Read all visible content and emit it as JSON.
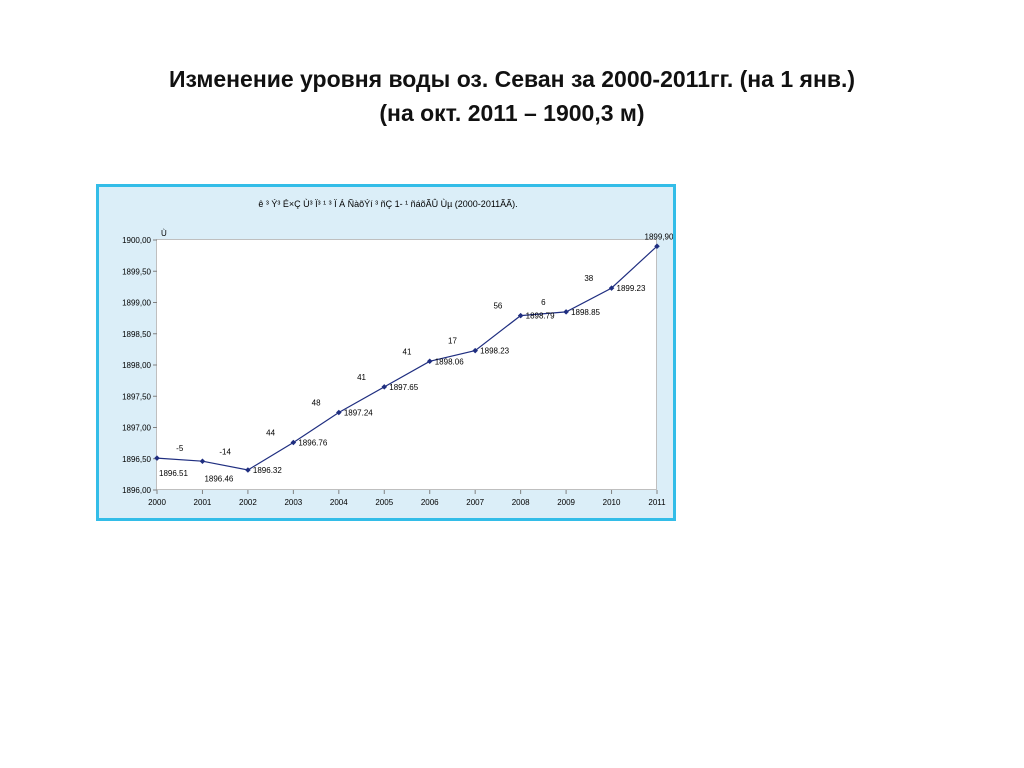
{
  "slide": {
    "title_line1": "Изменение уровня воды оз. Севан за  2000-2011гг. (на 1 янв.)",
    "title_line2": "(на  окт. 2011 – 1900,3 м)"
  },
  "colors": {
    "frame_border": "#33bde8",
    "chart_background": "#dbeef8",
    "plot_background": "#ffffff",
    "series_line": "#1f2e80"
  },
  "chart_data": {
    "type": "line",
    "title": "ê ³ Ý³  É×Ç Ù³  Ï³ ¹ ³  Ï Á ÑàõÝí ³  ñÇ 1- ¹ ñáõÃÛ Ùµ (2000-2011ÃÃ).",
    "ylabel": "Ù",
    "xlabel": "",
    "x": [
      "2000",
      "2001",
      "2002",
      "2003",
      "2004",
      "2005",
      "2006",
      "2007",
      "2008",
      "2009",
      "2010",
      "2011"
    ],
    "series": [
      {
        "name": "",
        "values": [
          1896.51,
          1896.46,
          1896.32,
          1896.76,
          1897.24,
          1897.65,
          1898.06,
          1898.23,
          1898.79,
          1898.85,
          1899.23,
          1899.9
        ],
        "value_labels": [
          "1896.51",
          "1896.46",
          "1896.32",
          "1896.76",
          "1897.24",
          "1897.65",
          "1898.06",
          "1898.23",
          "1898.79",
          "1898.85",
          "1899.23",
          "1899,90"
        ],
        "change_labels": [
          "",
          "-5",
          "-14",
          "44",
          "48",
          "41",
          "41",
          "17",
          "56",
          "6",
          "38",
          ""
        ]
      }
    ],
    "ylim": [
      1896.0,
      1900.0
    ],
    "yticks": [
      "1896,00",
      "1896,50",
      "1897,00",
      "1897,50",
      "1898,00",
      "1898,50",
      "1899,00",
      "1899,50",
      "1900,00"
    ],
    "grid": false,
    "legend": "none"
  }
}
